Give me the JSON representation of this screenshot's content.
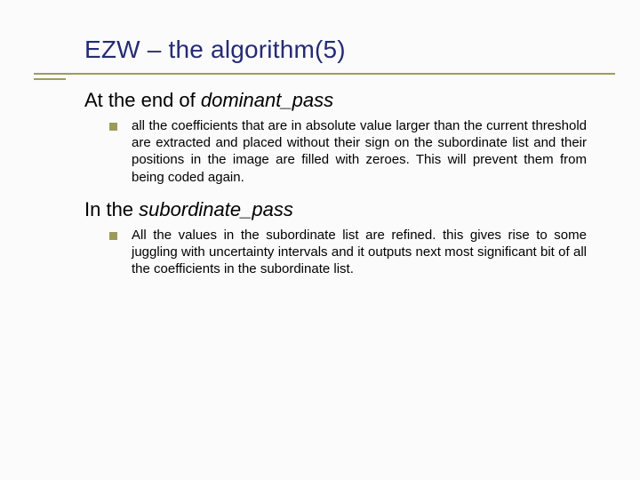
{
  "title": "EZW – the algorithm(5)",
  "sections": [
    {
      "heading_plain": "At the end of ",
      "heading_italic": "dominant_pass",
      "items": [
        "all the coefficients that are in absolute value larger than the current threshold are extracted and placed without their sign on the subordinate list and their positions in the image are filled with zeroes. This will prevent them from being coded again."
      ]
    },
    {
      "heading_plain": "In the ",
      "heading_italic": "subordinate_pass",
      "items": [
        "All the values in the subordinate list are refined. this gives rise to some juggling with uncertainty intervals and it outputs next most significant bit of all the coefficients in the subordinate list."
      ]
    }
  ],
  "style": {
    "title_color": "#242b74",
    "rule_color": "#9c9c5a",
    "bullet_color": "#9c9c5a",
    "background_color": "#fbfbfb",
    "title_fontsize": 28,
    "section_head_fontsize": 22,
    "body_fontsize": 15
  }
}
